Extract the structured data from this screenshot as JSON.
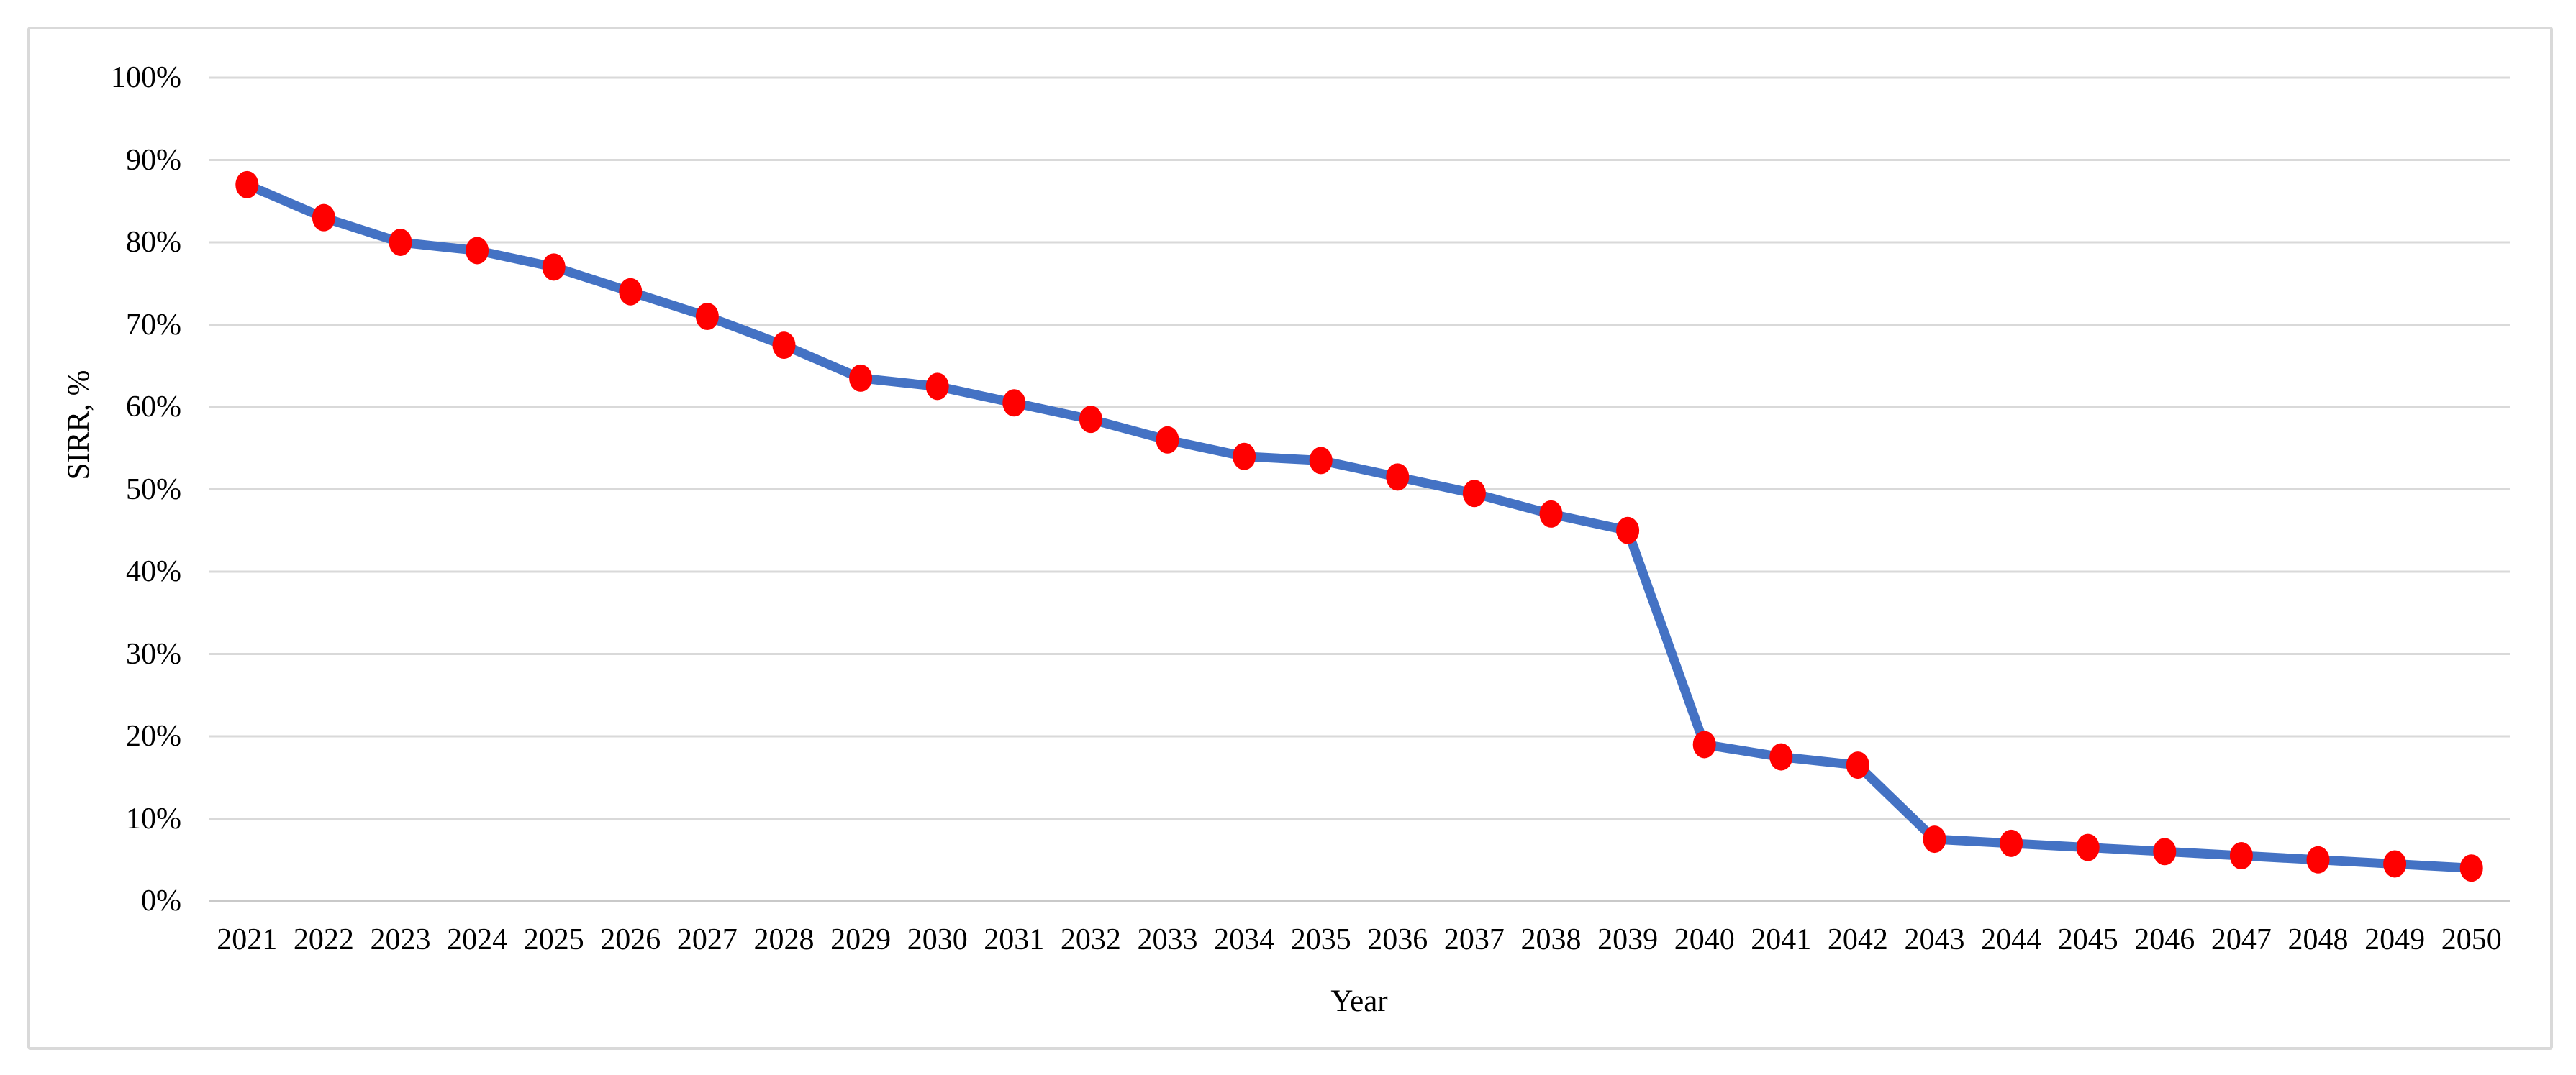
{
  "figure": {
    "background": "#FFFFFF",
    "border_color": "#D9D9D9"
  },
  "chart_data": {
    "type": "line",
    "title": "",
    "categories": [
      "2021",
      "2022",
      "2023",
      "2024",
      "2025",
      "2026",
      "2027",
      "2028",
      "2029",
      "2030",
      "2031",
      "2032",
      "2033",
      "2034",
      "2035",
      "2036",
      "2037",
      "2038",
      "2039",
      "2040",
      "2041",
      "2042",
      "2043",
      "2044",
      "2045",
      "2046",
      "2047",
      "2048",
      "2049",
      "2050"
    ],
    "series": [
      {
        "name": "SIRR",
        "values": [
          87,
          83,
          80,
          79,
          77,
          74,
          71,
          67.5,
          63.5,
          62.5,
          60.5,
          58.5,
          56,
          54,
          53.5,
          51.5,
          49.5,
          47,
          45,
          19,
          17.5,
          16.5,
          7.5,
          7,
          6.5,
          6,
          5.5,
          5,
          4.5,
          4
        ],
        "line_color": "#4472C4",
        "marker": "circle",
        "marker_color": "#FF0000"
      }
    ],
    "xlabel": "Year",
    "ylabel": "SIRR, %",
    "ylim": [
      0,
      100
    ],
    "ytick_interval": 10,
    "ytick_labels": [
      "0%",
      "10%",
      "20%",
      "30%",
      "40%",
      "50%",
      "60%",
      "70%",
      "80%",
      "90%",
      "100%"
    ],
    "grid": "horizontal",
    "gridline_color": "#D9D9D9",
    "axisline_color": "#C9C9C9",
    "legend": "none"
  }
}
